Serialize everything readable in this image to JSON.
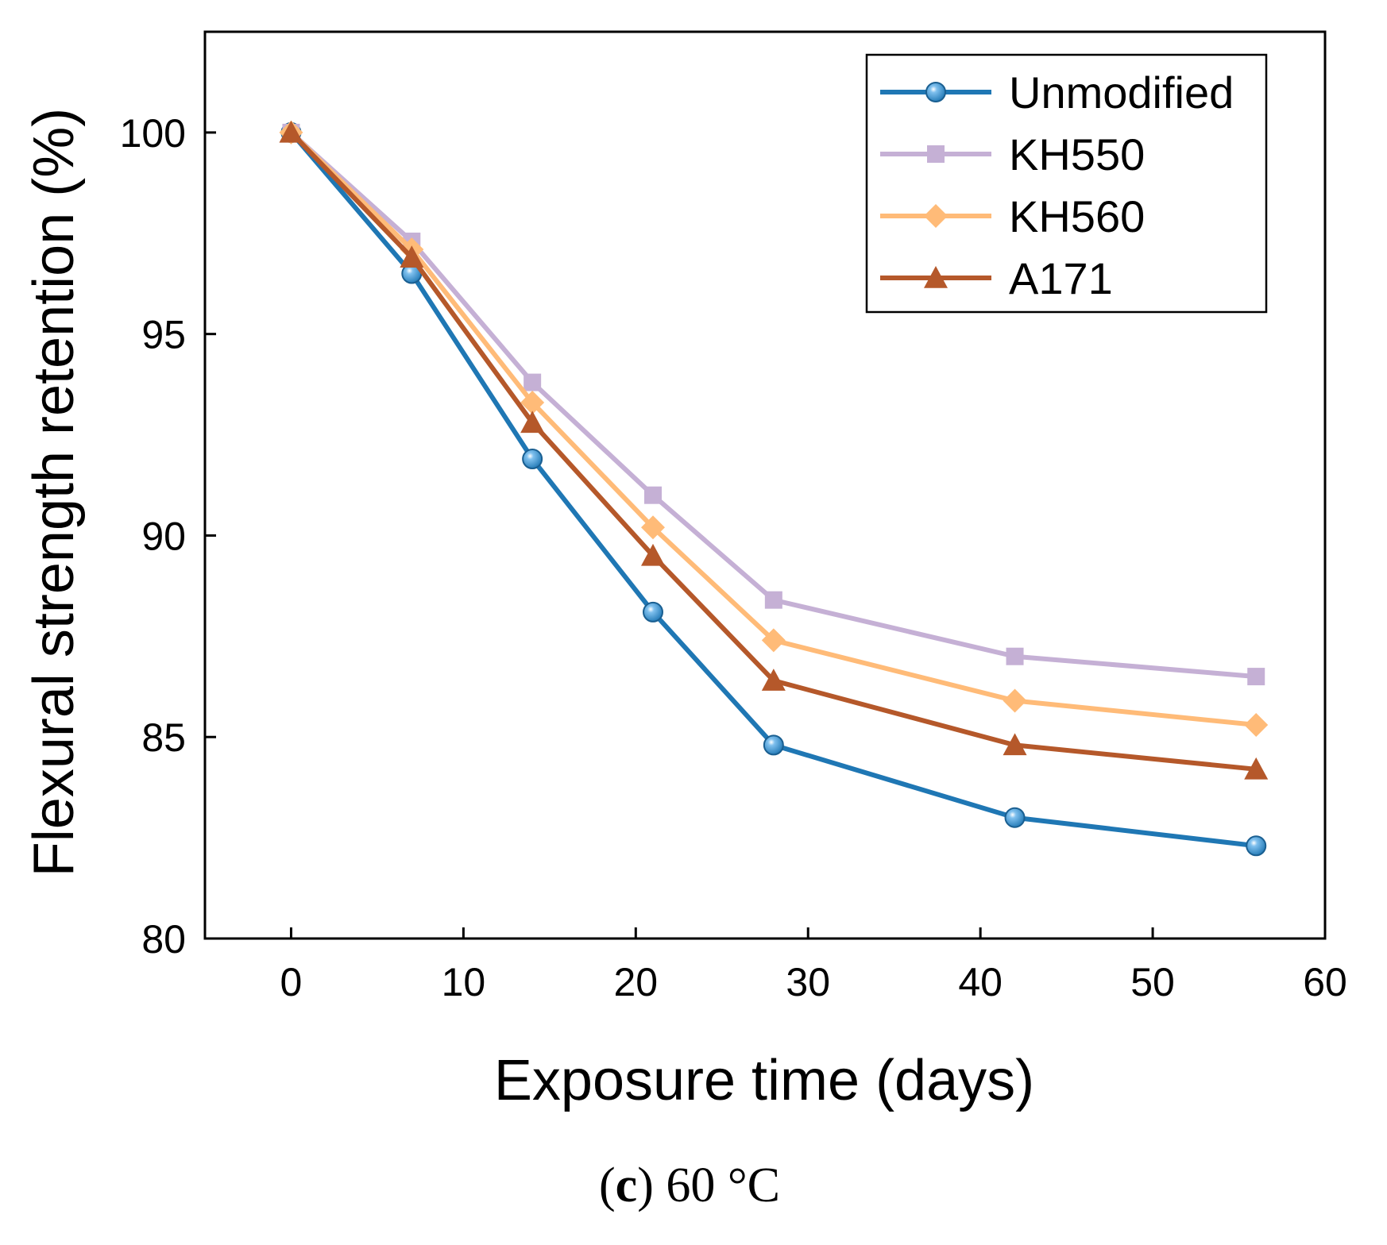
{
  "chart_data": {
    "type": "line",
    "title": "",
    "xlabel": "Exposure time (days)",
    "ylabel": "Flexural strength retention (%)",
    "xlim": [
      -5,
      60
    ],
    "ylim": [
      80,
      102.5
    ],
    "xticks": [
      0,
      10,
      20,
      30,
      40,
      50,
      60
    ],
    "yticks": [
      80,
      85,
      90,
      95,
      100
    ],
    "grid": false,
    "legend_position": "top-right",
    "x": [
      0,
      7,
      14,
      21,
      28,
      42,
      56
    ],
    "series": [
      {
        "name": "Unmodified",
        "color": "#1f77b4",
        "marker": "circle",
        "values": [
          100,
          96.5,
          91.9,
          88.1,
          84.8,
          83.0,
          82.3
        ]
      },
      {
        "name": "KH550",
        "color": "#c5b0d5",
        "marker": "square",
        "values": [
          100,
          97.3,
          93.8,
          91.0,
          88.4,
          87.0,
          86.5
        ]
      },
      {
        "name": "KH560",
        "color": "#ffbb78",
        "marker": "diamond",
        "values": [
          100,
          97.1,
          93.3,
          90.2,
          87.4,
          85.9,
          85.3
        ]
      },
      {
        "name": "A171",
        "color": "#b5582a",
        "marker": "triangle",
        "values": [
          100,
          96.9,
          92.8,
          89.5,
          86.4,
          84.8,
          84.2
        ]
      }
    ]
  },
  "caption": {
    "open_paren": "(",
    "letter": "c",
    "rest": ") 60 °C"
  }
}
